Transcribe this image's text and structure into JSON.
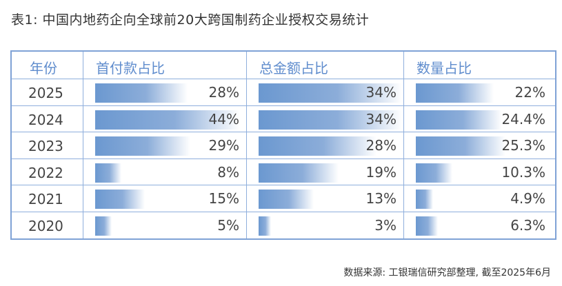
{
  "title": "表1: 中国内地药企向全球前20大跨国制药企业授权交易统计",
  "footer": "数据来源: 工银瑞信研究部整理, 截至2025年6月",
  "chart_data": {
    "type": "table",
    "title": "表1: 中国内地药企向全球前20大跨国制药企业授权交易统计",
    "columns": [
      "年份",
      "首付款占比",
      "总金额占比",
      "数量占比"
    ],
    "bar_color": "#6b98d0",
    "rows": [
      {
        "year": "2025",
        "values": [
          28,
          34,
          22
        ],
        "labels": [
          "28%",
          "34%",
          "22%"
        ]
      },
      {
        "year": "2024",
        "values": [
          44,
          34,
          24.4
        ],
        "labels": [
          "44%",
          "34%",
          "24.4%"
        ]
      },
      {
        "year": "2023",
        "values": [
          29,
          28,
          25.3
        ],
        "labels": [
          "29%",
          "28%",
          "25.3%"
        ]
      },
      {
        "year": "2022",
        "values": [
          8,
          19,
          10.3
        ],
        "labels": [
          "8%",
          "19%",
          "10.3%"
        ]
      },
      {
        "year": "2021",
        "values": [
          15,
          13,
          4.9
        ],
        "labels": [
          "15%",
          "13%",
          "4.9%"
        ]
      },
      {
        "year": "2020",
        "values": [
          5,
          3,
          6.3
        ],
        "labels": [
          "5%",
          "3%",
          "6.3%"
        ]
      }
    ]
  }
}
